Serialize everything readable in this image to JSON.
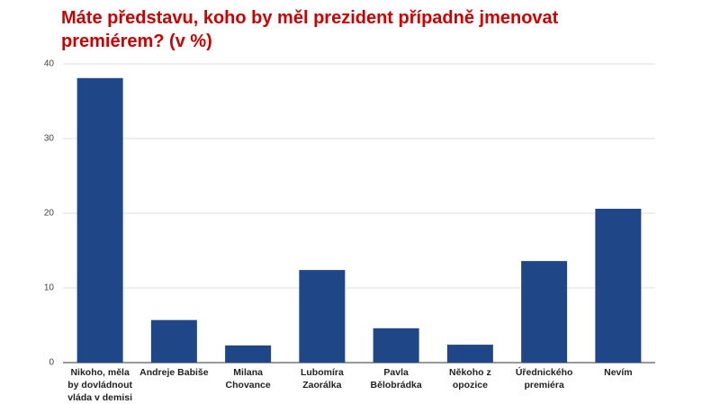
{
  "chart_data": {
    "type": "bar",
    "title": "Máte představu, koho by měl prezident případně jmenovat premiérem? (v %)",
    "categories": [
      "Nikoho, měla by dovládnout vláda v demisi",
      "Andreje Babiše",
      "Milana Chovance",
      "Lubomíra Zaorálka",
      "Pavla Bělobrádka",
      "Někoho z opozice",
      "Úřednického premiéra",
      "Nevím"
    ],
    "values": [
      38.1,
      5.7,
      2.3,
      12.4,
      4.6,
      2.4,
      13.6,
      20.6
    ],
    "color": "#1f4788",
    "ylim": [
      0,
      40
    ],
    "yticks": [
      0,
      10,
      20,
      30,
      40
    ],
    "grid": true
  }
}
